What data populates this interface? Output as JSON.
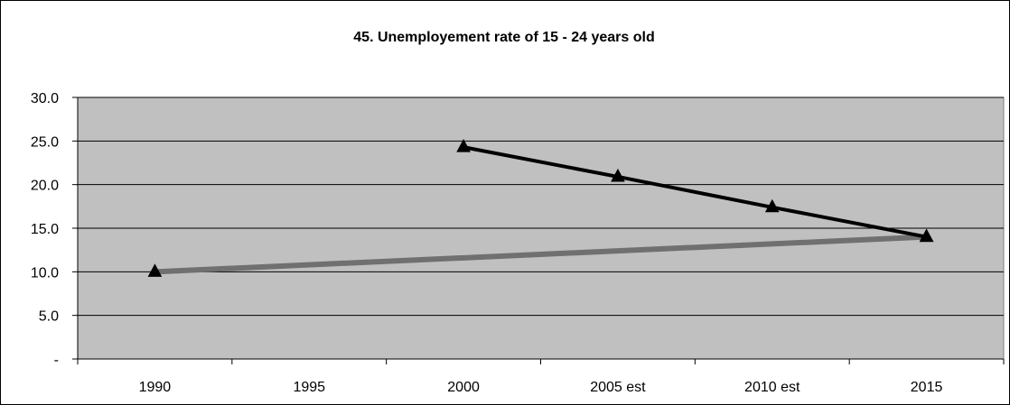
{
  "chart_data": {
    "type": "line",
    "title": "45. Unemployement rate of 15 - 24 years old",
    "xlabel": "",
    "ylabel": "",
    "categories": [
      "1990",
      "1995",
      "2000",
      "2005 est",
      "2010 est",
      "2015"
    ],
    "ylim": [
      0,
      30
    ],
    "y_ticks": [
      0,
      5,
      10,
      15,
      20,
      25,
      30
    ],
    "y_tick_labels": [
      "-",
      "5.0",
      "10.0",
      "15.0",
      "20.0",
      "25.0",
      "30.0"
    ],
    "grid": true,
    "legend": "none",
    "plot_background": "#c0c0c0",
    "series": [
      {
        "values": [
          10.0,
          null,
          null,
          null,
          null,
          14.0
        ],
        "color": "#707070",
        "marker": "triangle",
        "style": "thick"
      },
      {
        "values": [
          null,
          null,
          24.3,
          20.9,
          17.4,
          14.0
        ],
        "color": "#000000",
        "marker": "triangle",
        "style": "normal"
      }
    ]
  }
}
